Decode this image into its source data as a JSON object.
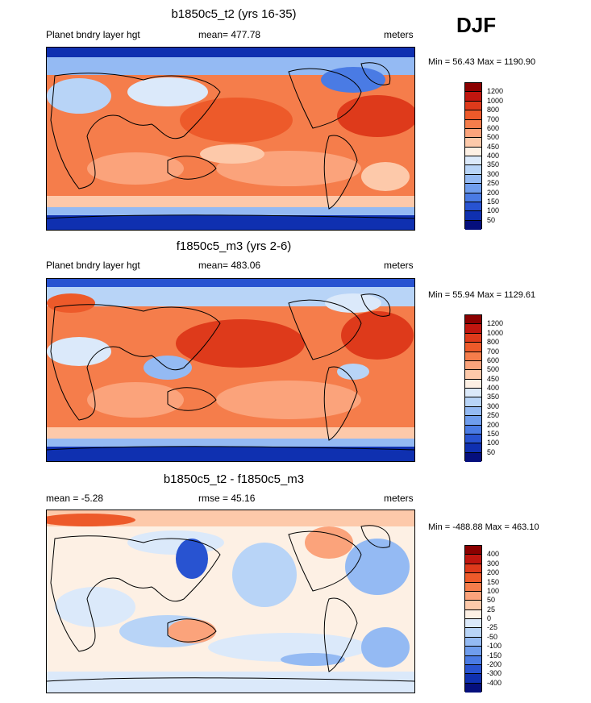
{
  "season": "DJF",
  "panels": [
    {
      "title": "b1850c5_t2 (yrs 16-35)",
      "left_label": "Planet bndry layer hgt",
      "center_label": "mean= 477.78",
      "right_label": "meters",
      "minmax": "Min =  56.43 Max = 1190.90",
      "variant": "abs"
    },
    {
      "title": "f1850c5_m3 (yrs 2-6)",
      "left_label": "Planet bndry layer hgt",
      "center_label": "mean= 483.06",
      "right_label": "meters",
      "minmax": "Min =  55.94 Max = 1129.61",
      "variant": "abs"
    },
    {
      "title": "b1850c5_t2 - f1850c5_m3",
      "left_label": "mean =  -5.28",
      "center_label": "rmse =  45.16",
      "right_label": "meters",
      "minmax": "Min = -488.88 Max = 463.10",
      "variant": "diff"
    }
  ],
  "colorbar_abs": {
    "labels": [
      "1200",
      "1000",
      "800",
      "700",
      "600",
      "500",
      "450",
      "400",
      "350",
      "300",
      "250",
      "200",
      "150",
      "100",
      "50"
    ],
    "colors": [
      "#8b0000",
      "#c0160f",
      "#de3a1b",
      "#ed5a2a",
      "#f57d4b",
      "#fba37b",
      "#fdc9aa",
      "#fdf0e4",
      "#dbe9fa",
      "#b8d4f7",
      "#94baf3",
      "#6f9ded",
      "#4a7be4",
      "#2853d1",
      "#0f30b0",
      "#050f7d"
    ]
  },
  "colorbar_diff": {
    "labels": [
      "400",
      "300",
      "200",
      "150",
      "100",
      "50",
      "25",
      "0",
      "-25",
      "-50",
      "-100",
      "-150",
      "-200",
      "-300",
      "-400"
    ],
    "colors": [
      "#8b0000",
      "#c0160f",
      "#de3a1b",
      "#ed5a2a",
      "#f57d4b",
      "#fba37b",
      "#fdc9aa",
      "#fdf0e4",
      "#dbe9fa",
      "#b8d4f7",
      "#94baf3",
      "#6f9ded",
      "#4a7be4",
      "#2853d1",
      "#0f30b0",
      "#050f7d"
    ]
  }
}
